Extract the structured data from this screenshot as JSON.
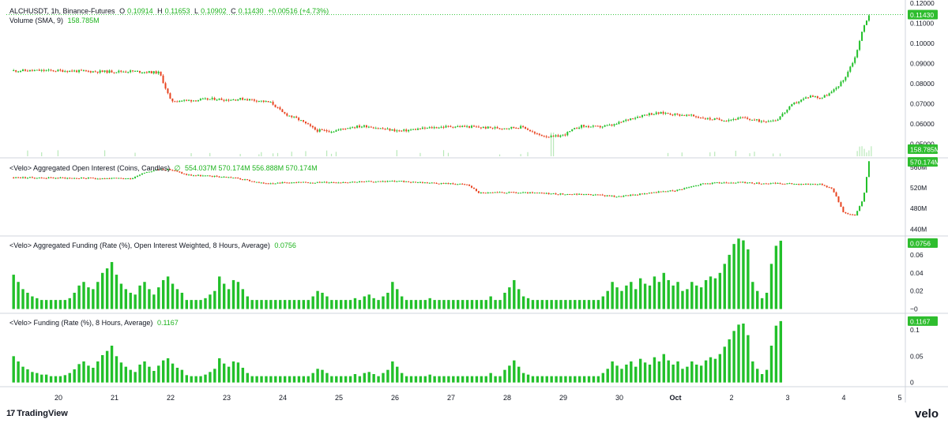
{
  "colors": {
    "up": "#22c02a",
    "down": "#e8431f",
    "axis_text": "#131722",
    "label_bg": "#2ebd2e",
    "grid": "#e0e3eb"
  },
  "header": {
    "symbol": "ALCHUSDT, 1h, Binance-Futures",
    "o_label": "O",
    "o_value": "0.10914",
    "h_label": "H",
    "h_value": "0.11653",
    "l_label": "L",
    "l_value": "0.10902",
    "c_label": "C",
    "c_value": "0.11430",
    "change": "+0.00516 (+4.73%)",
    "volume_label": "Volume (SMA, 9)",
    "volume_value": "158.785M"
  },
  "pane_oi": {
    "title": "<Velo> Aggregated Open Interest (Coins, Candles)",
    "symbol": "∅",
    "values": "554.037M  570.174M  556.888M  570.174M"
  },
  "pane_agg_funding": {
    "title": "<Velo> Aggregated Funding (Rate (%), Open Interest Weighted, 8 Hours, Average)",
    "value": "0.0756"
  },
  "pane_funding": {
    "title": "<Velo> Funding (Rate (%), 8 Hours, Average)",
    "value": "0.1167"
  },
  "footer": {
    "tradingview": "TradingView",
    "tv_mark": "17",
    "velo": "velo"
  },
  "chart_data": [
    {
      "type": "candlestick",
      "title": "ALCHUSDT, 1h, Binance-Futures",
      "x_ticks": [
        "20",
        "21",
        "22",
        "23",
        "24",
        "25",
        "26",
        "27",
        "28",
        "29",
        "30",
        "Oct",
        "2",
        "3",
        "4",
        "5"
      ],
      "y_ticks": [
        "0.05000",
        "0.06000",
        "0.07000",
        "0.08000",
        "0.09000",
        "0.10000",
        "0.11000",
        "0.12000"
      ],
      "ylim": [
        0.044,
        0.12
      ],
      "last_price_label": "0.11430",
      "volume_label": "158.785M",
      "path_x_days": [
        -0.8,
        0.0,
        0.8,
        1.3,
        1.8,
        2.0,
        2.4,
        2.8,
        3.0,
        3.3,
        3.6,
        3.8,
        4.0,
        4.3,
        4.6,
        4.9,
        5.2,
        5.5,
        5.8,
        6.1,
        6.4,
        6.7,
        7.0,
        7.3,
        7.6,
        7.9,
        8.3,
        8.5,
        8.8,
        9.0,
        9.3,
        9.6,
        9.9,
        10.2,
        10.5,
        10.8,
        11.0,
        11.3,
        11.6,
        11.9,
        12.2,
        12.5,
        12.8,
        13.1,
        13.4,
        13.6,
        13.8,
        14.0,
        14.2,
        14.35,
        14.45
      ],
      "path_close": [
        0.0865,
        0.0865,
        0.086,
        0.0862,
        0.0855,
        0.0715,
        0.0718,
        0.0725,
        0.072,
        0.0725,
        0.0715,
        0.0705,
        0.0655,
        0.062,
        0.0568,
        0.0565,
        0.0585,
        0.059,
        0.0575,
        0.0565,
        0.0575,
        0.0583,
        0.0588,
        0.0587,
        0.0582,
        0.058,
        0.0585,
        0.055,
        0.0535,
        0.0545,
        0.059,
        0.0585,
        0.0595,
        0.0628,
        0.065,
        0.0655,
        0.0648,
        0.064,
        0.0625,
        0.062,
        0.063,
        0.0615,
        0.062,
        0.07,
        0.074,
        0.073,
        0.076,
        0.082,
        0.093,
        0.108,
        0.1143
      ]
    },
    {
      "type": "candlestick",
      "title": "<Velo> Aggregated Open Interest (Coins, Candles)",
      "y_ticks": [
        "440M",
        "480M",
        "520M",
        "560M"
      ],
      "ylim": [
        430,
        575
      ],
      "last_value_label": "570.174M",
      "path_x_days": [
        -0.8,
        0.2,
        1.3,
        1.5,
        1.8,
        2.0,
        2.3,
        2.8,
        3.1,
        3.4,
        3.6,
        4.0,
        5.0,
        6.0,
        7.0,
        7.3,
        7.5,
        8.0,
        8.5,
        9.0,
        9.5,
        10.0,
        10.5,
        11.0,
        11.5,
        12.0,
        12.5,
        13.0,
        13.6,
        13.8,
        14.0,
        14.2,
        14.35,
        14.45
      ],
      "path_close": [
        540,
        539,
        538,
        549,
        556,
        555,
        545,
        542,
        540,
        534,
        529,
        530,
        531,
        533,
        528,
        526,
        510,
        511,
        510,
        508,
        507,
        503,
        510,
        515,
        528,
        531,
        529,
        528,
        527,
        518,
        472,
        466,
        500,
        570.2
      ]
    },
    {
      "type": "bar",
      "title": "<Velo> Aggregated Funding (Rate (%), Open Interest Weighted, 8 Hours, Average)",
      "y_ticks": [
        "−0",
        "0.02",
        "0.04",
        "0.06"
      ],
      "ylim": [
        -0.003,
        0.08
      ],
      "last_value_label": "0.0756",
      "x_start_day": -0.8,
      "x_step_days": 0.0417,
      "values": [
        0.038,
        0.03,
        0.022,
        0.018,
        0.014,
        0.012,
        0.01,
        0.01,
        0.01,
        0.01,
        0.01,
        0.01,
        0.012,
        0.018,
        0.026,
        0.03,
        0.024,
        0.022,
        0.03,
        0.04,
        0.045,
        0.052,
        0.038,
        0.028,
        0.022,
        0.018,
        0.016,
        0.026,
        0.03,
        0.022,
        0.016,
        0.024,
        0.032,
        0.036,
        0.028,
        0.022,
        0.018,
        0.01,
        0.01,
        0.01,
        0.01,
        0.012,
        0.016,
        0.02,
        0.036,
        0.028,
        0.022,
        0.032,
        0.03,
        0.022,
        0.014,
        0.01,
        0.01,
        0.01,
        0.01,
        0.01,
        0.01,
        0.01,
        0.01,
        0.01,
        0.01,
        0.01,
        0.01,
        0.01,
        0.014,
        0.02,
        0.018,
        0.014,
        0.01,
        0.01,
        0.01,
        0.01,
        0.01,
        0.012,
        0.01,
        0.014,
        0.016,
        0.012,
        0.01,
        0.014,
        0.018,
        0.03,
        0.022,
        0.014,
        0.01,
        0.01,
        0.01,
        0.01,
        0.01,
        0.012,
        0.01,
        0.01,
        0.01,
        0.01,
        0.01,
        0.01,
        0.01,
        0.01,
        0.01,
        0.01,
        0.01,
        0.01,
        0.014,
        0.01,
        0.01,
        0.018,
        0.024,
        0.032,
        0.022,
        0.014,
        0.012,
        0.01,
        0.01,
        0.01,
        0.01,
        0.01,
        0.01,
        0.01,
        0.01,
        0.01,
        0.01,
        0.01,
        0.01,
        0.01,
        0.01,
        0.01,
        0.014,
        0.02,
        0.03,
        0.024,
        0.02,
        0.026,
        0.03,
        0.022,
        0.034,
        0.028,
        0.026,
        0.036,
        0.03,
        0.04,
        0.032,
        0.026,
        0.03,
        0.02,
        0.022,
        0.03,
        0.026,
        0.024,
        0.032,
        0.036,
        0.034,
        0.04,
        0.05,
        0.06,
        0.072,
        0.078,
        0.076,
        0.066,
        0.03,
        0.02,
        0.012,
        0.018,
        0.05,
        0.07,
        0.0756
      ]
    },
    {
      "type": "bar",
      "title": "<Velo> Funding (Rate (%), 8 Hours, Average)",
      "y_ticks": [
        "0",
        "0.05",
        "0.1"
      ],
      "ylim": [
        -0.005,
        0.13
      ],
      "last_value_label": "0.1167",
      "x_start_day": -0.8,
      "x_step_days": 0.0417,
      "values": [
        0.05,
        0.04,
        0.03,
        0.025,
        0.02,
        0.018,
        0.015,
        0.015,
        0.012,
        0.012,
        0.012,
        0.014,
        0.018,
        0.025,
        0.035,
        0.04,
        0.032,
        0.028,
        0.04,
        0.052,
        0.06,
        0.07,
        0.05,
        0.038,
        0.03,
        0.024,
        0.02,
        0.034,
        0.04,
        0.03,
        0.022,
        0.032,
        0.042,
        0.046,
        0.036,
        0.028,
        0.024,
        0.014,
        0.012,
        0.012,
        0.012,
        0.015,
        0.02,
        0.026,
        0.046,
        0.036,
        0.03,
        0.04,
        0.038,
        0.028,
        0.018,
        0.012,
        0.012,
        0.012,
        0.012,
        0.012,
        0.012,
        0.012,
        0.012,
        0.012,
        0.012,
        0.012,
        0.012,
        0.012,
        0.018,
        0.026,
        0.024,
        0.018,
        0.012,
        0.012,
        0.012,
        0.012,
        0.012,
        0.016,
        0.012,
        0.018,
        0.02,
        0.016,
        0.012,
        0.018,
        0.024,
        0.04,
        0.03,
        0.018,
        0.012,
        0.012,
        0.012,
        0.012,
        0.012,
        0.015,
        0.012,
        0.012,
        0.012,
        0.012,
        0.012,
        0.012,
        0.012,
        0.012,
        0.012,
        0.012,
        0.012,
        0.012,
        0.018,
        0.012,
        0.012,
        0.024,
        0.032,
        0.042,
        0.03,
        0.018,
        0.015,
        0.012,
        0.012,
        0.012,
        0.012,
        0.012,
        0.012,
        0.012,
        0.012,
        0.012,
        0.012,
        0.012,
        0.012,
        0.012,
        0.012,
        0.012,
        0.018,
        0.026,
        0.04,
        0.032,
        0.026,
        0.034,
        0.04,
        0.03,
        0.045,
        0.038,
        0.034,
        0.048,
        0.04,
        0.054,
        0.042,
        0.034,
        0.04,
        0.026,
        0.03,
        0.04,
        0.034,
        0.032,
        0.042,
        0.048,
        0.045,
        0.054,
        0.068,
        0.082,
        0.098,
        0.11,
        0.112,
        0.09,
        0.04,
        0.026,
        0.016,
        0.024,
        0.07,
        0.108,
        0.1167
      ]
    }
  ]
}
